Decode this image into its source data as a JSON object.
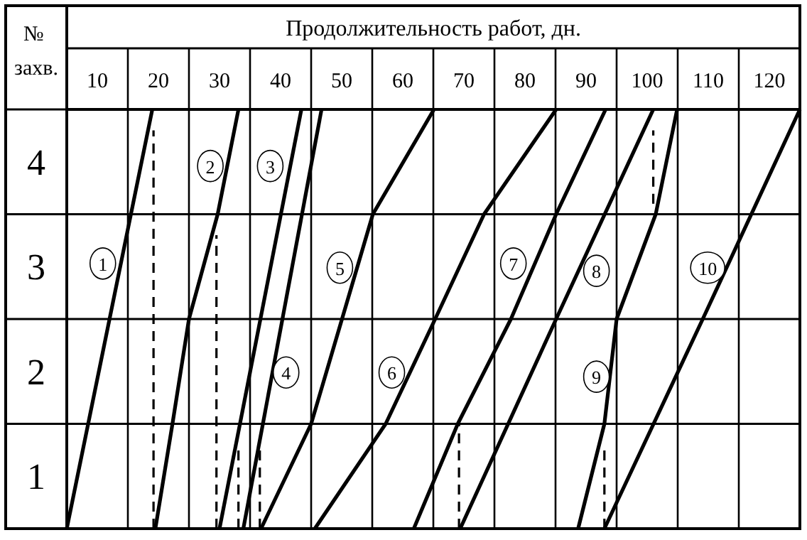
{
  "chart_data": {
    "type": "line",
    "title": "Продолжительность работ, дн.",
    "ylabel": "№ захв.",
    "xlim": [
      5,
      125
    ],
    "ylim": [
      0.5,
      4.5
    ],
    "xticks": [
      10,
      {
        "value": 15,
        "label": null
      },
      20,
      {
        "value": 25,
        "label": null
      },
      30,
      {
        "value": 35,
        "label": null
      },
      40,
      {
        "value": 45,
        "label": null
      },
      50,
      {
        "value": 55,
        "label": null
      },
      60,
      {
        "value": 65,
        "label": null
      },
      70,
      {
        "value": 75,
        "label": null
      },
      80,
      {
        "value": 85,
        "label": null
      },
      90,
      {
        "value": 95,
        "label": null
      },
      100,
      {
        "value": 105,
        "label": null
      },
      110,
      {
        "value": 115,
        "label": null
      },
      120,
      {
        "value": 125,
        "label": null
      }
    ],
    "yticks": [
      {
        "value": 0.5,
        "label": null
      },
      1,
      {
        "value": 1.5,
        "label": null
      },
      2,
      {
        "value": 2.5,
        "label": null
      },
      3,
      {
        "value": 3.5,
        "label": null
      },
      4,
      {
        "value": 4.5,
        "label": null
      }
    ],
    "grid": true,
    "marker": "none",
    "series": [
      {
        "color": "#000000",
        "line_style": "solid",
        "x": [
          5,
          19
        ],
        "values": [
          0.5,
          4.5
        ]
      },
      {
        "color": "#000000",
        "line_style": "dashed",
        "x": [
          19.2,
          19.2
        ],
        "values": [
          0.5,
          4.3
        ]
      },
      {
        "color": "#000000",
        "line_style": "solid",
        "x": [
          19.5,
          22.3,
          25,
          29.7,
          33.1
        ],
        "values": [
          0.5,
          1.5,
          2.5,
          3.5,
          4.5
        ]
      },
      {
        "color": "#000000",
        "line_style": "dashed",
        "x": [
          29.5,
          29.5
        ],
        "values": [
          0.5,
          3.3
        ]
      },
      {
        "color": "#000000",
        "line_style": "solid",
        "x": [
          30,
          43.4
        ],
        "values": [
          0.5,
          4.5
        ]
      },
      {
        "color": "#000000",
        "line_style": "dashed",
        "x": [
          33.1,
          33.1
        ],
        "values": [
          0.5,
          1.3
        ]
      },
      {
        "color": "#000000",
        "line_style": "solid",
        "x": [
          33.9,
          46.7
        ],
        "values": [
          0.5,
          4.5
        ]
      },
      {
        "color": "#000000",
        "line_style": "dashed",
        "x": [
          36.6,
          36.6
        ],
        "values": [
          0.5,
          1.3
        ]
      },
      {
        "color": "#000000",
        "line_style": "solid",
        "x": [
          36.8,
          45,
          55.1,
          65.1
        ],
        "values": [
          0.5,
          1.5,
          3.5,
          4.5
        ]
      },
      {
        "color": "#000000",
        "line_style": "solid",
        "x": [
          45.6,
          57.2,
          65.3,
          73.3,
          85.1
        ],
        "values": [
          0.5,
          1.5,
          2.5,
          3.5,
          4.5
        ]
      },
      {
        "color": "#000000",
        "line_style": "solid",
        "x": [
          61.8,
          69,
          77.7,
          85.1,
          93.2
        ],
        "values": [
          0.5,
          1.5,
          2.5,
          3.5,
          4.5
        ]
      },
      {
        "color": "#000000",
        "line_style": "dashed",
        "x": [
          69.2,
          69.2
        ],
        "values": [
          0.5,
          1.5
        ]
      },
      {
        "color": "#000000",
        "line_style": "solid",
        "x": [
          69.4,
          85.1,
          101
        ],
        "values": [
          0.5,
          2.5,
          4.5
        ]
      },
      {
        "color": "#000000",
        "line_style": "solid",
        "x": [
          88.7,
          93,
          95,
          101.4,
          104.9
        ],
        "values": [
          0.5,
          1.5,
          2.5,
          3.5,
          4.5
        ]
      },
      {
        "color": "#000000",
        "line_style": "dashed",
        "x": [
          93,
          93
        ],
        "values": [
          0.5,
          1.3
        ]
      },
      {
        "color": "#000000",
        "line_style": "dashed",
        "x": [
          101,
          101
        ],
        "values": [
          3.6,
          4.3
        ]
      },
      {
        "color": "#000000",
        "line_style": "solid",
        "x": [
          93,
          109.1,
          125
        ],
        "values": [
          0.5,
          2.5,
          4.5
        ]
      }
    ],
    "annotations": [
      {
        "text": "1",
        "x": 10.9,
        "y": 3.03
      },
      {
        "text": "2",
        "x": 28.5,
        "y": 3.96
      },
      {
        "text": "3",
        "x": 38.3,
        "y": 3.96
      },
      {
        "text": "4",
        "x": 40.9,
        "y": 1.99
      },
      {
        "text": "5",
        "x": 49.7,
        "y": 2.99
      },
      {
        "text": "6",
        "x": 58.2,
        "y": 1.99
      },
      {
        "text": "7",
        "x": 78.1,
        "y": 3.03
      },
      {
        "text": "8",
        "x": 91.7,
        "y": 2.96
      },
      {
        "text": "9",
        "x": 91.7,
        "y": 1.95
      },
      {
        "text": "10",
        "x": 109.9,
        "y": 2.99
      }
    ]
  }
}
